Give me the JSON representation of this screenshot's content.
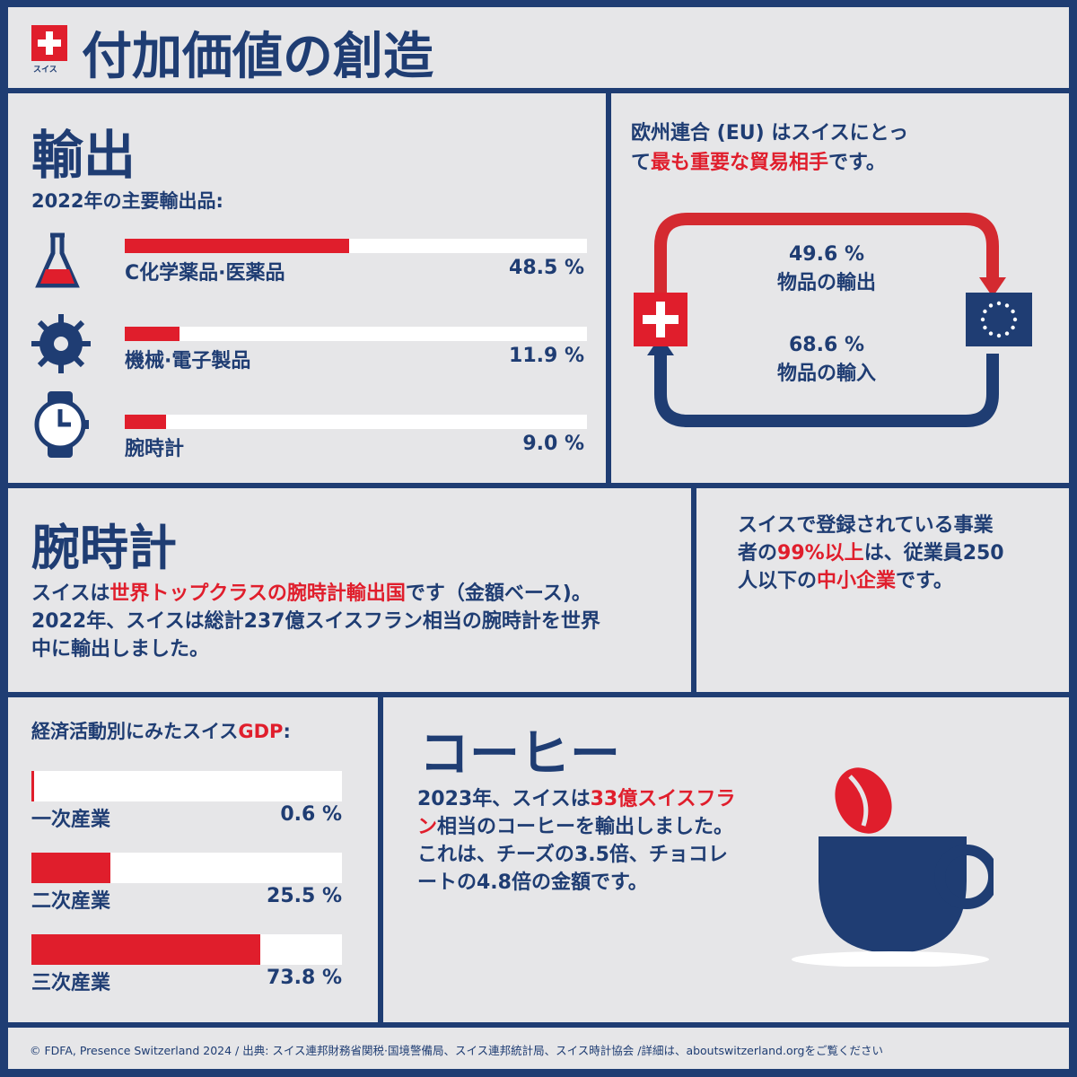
{
  "header": {
    "title": "付加価値の創造",
    "logo_text": "スイス"
  },
  "exports": {
    "heading": "輸出",
    "subtitle": "2022年の主要輸出品:",
    "items": [
      {
        "label": "C化学薬品·医薬品",
        "value": "48.5 %",
        "pct": 48.5,
        "icon": "flask-icon"
      },
      {
        "label": "機械·電子製品",
        "value": "11.9 %",
        "pct": 11.9,
        "icon": "gear-icon"
      },
      {
        "label": "腕時計",
        "value": "9.0 %",
        "pct": 9.0,
        "icon": "watch-icon"
      }
    ]
  },
  "eu": {
    "text1": "欧州連合 (EU) はスイスにとっ",
    "text2a": "て",
    "text2b": "最も重要な貿易相手",
    "text2c": "です。",
    "export_pct": "49.6 %",
    "export_label": "物品の輸出",
    "import_pct": "68.6 %",
    "import_label": "物品の輸入"
  },
  "watches": {
    "heading": "腕時計",
    "p1": "スイスは",
    "p2": "世界トップクラスの腕時計輸出国",
    "p3": "です（金額ベース)。2022年、スイスは総計237億スイスフラン相当の腕時計を世界中に輸出しました。"
  },
  "sme": {
    "a": "スイスで登録されている事業者の",
    "b": "99%以上",
    "c": "は、従業員250人以下の",
    "d": "中小企業",
    "e": "です。"
  },
  "gdp": {
    "title_a": "経済活動別にみたスイス",
    "title_b": "GDP",
    "title_c": ":",
    "items": [
      {
        "label": "一次産業",
        "value": "0.6 %",
        "pct": 0.6
      },
      {
        "label": "二次産業",
        "value": "25.5 %",
        "pct": 25.5
      },
      {
        "label": "三次産業",
        "value": "73.8 %",
        "pct": 73.8
      }
    ]
  },
  "coffee": {
    "heading": "コーヒー",
    "a": "2023年、スイスは",
    "b": "33億スイスフラン",
    "c": "相当のコーヒーを輸出しました。これは、チーズの3.5倍、チョコレートの4.8倍の金額です。"
  },
  "footer": "© FDFA, Presence Switzerland 2024 / 出典: スイス連邦財務省関税·国境警備局、スイス連邦統計局、スイス時計協会 /詳細は、aboutswitzerland.orgをご覧ください",
  "colors": {
    "navy": "#1f3d73",
    "red": "#e01e2c",
    "bg": "#e6e6e8"
  }
}
